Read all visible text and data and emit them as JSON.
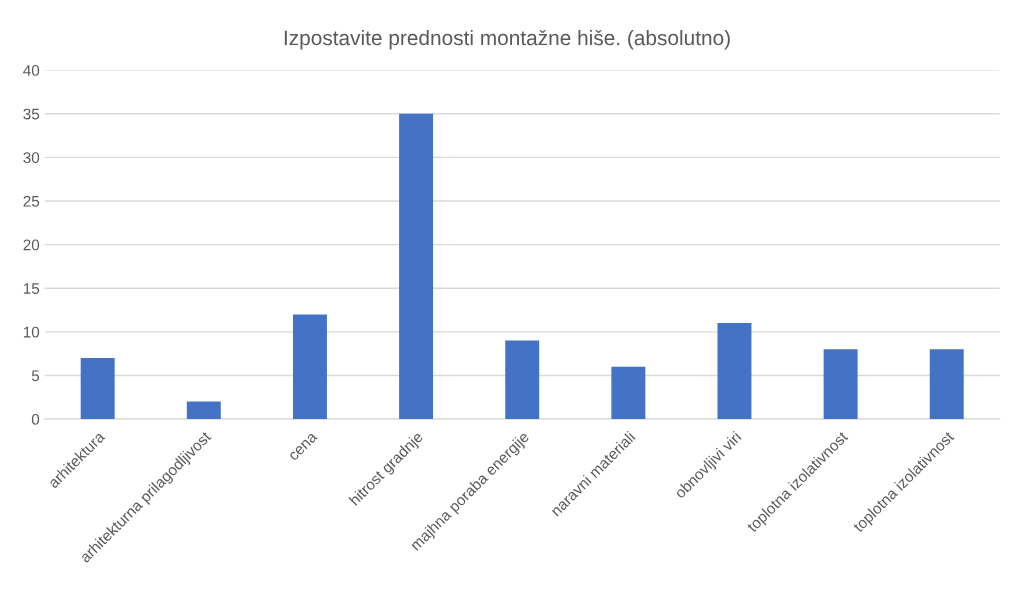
{
  "chart_data": {
    "type": "bar",
    "title": "Izpostavite prednosti montažne hiše. (absolutno)",
    "categories": [
      "arhitektura",
      "arhitekturna prilagodljivost",
      "cena",
      "hitrost gradnje",
      "majhna poraba energije",
      "naravni materiali",
      "obnovljivi viri",
      "toplotna izolativnost",
      "toplotna izolativnost"
    ],
    "values": [
      7,
      2,
      12,
      35,
      9,
      6,
      11,
      8,
      8
    ],
    "color": "#4472c4",
    "ylim": [
      0,
      40
    ],
    "yticks": [
      0,
      5,
      10,
      15,
      20,
      25,
      30,
      35,
      40
    ],
    "grid": "y",
    "legend": false
  }
}
